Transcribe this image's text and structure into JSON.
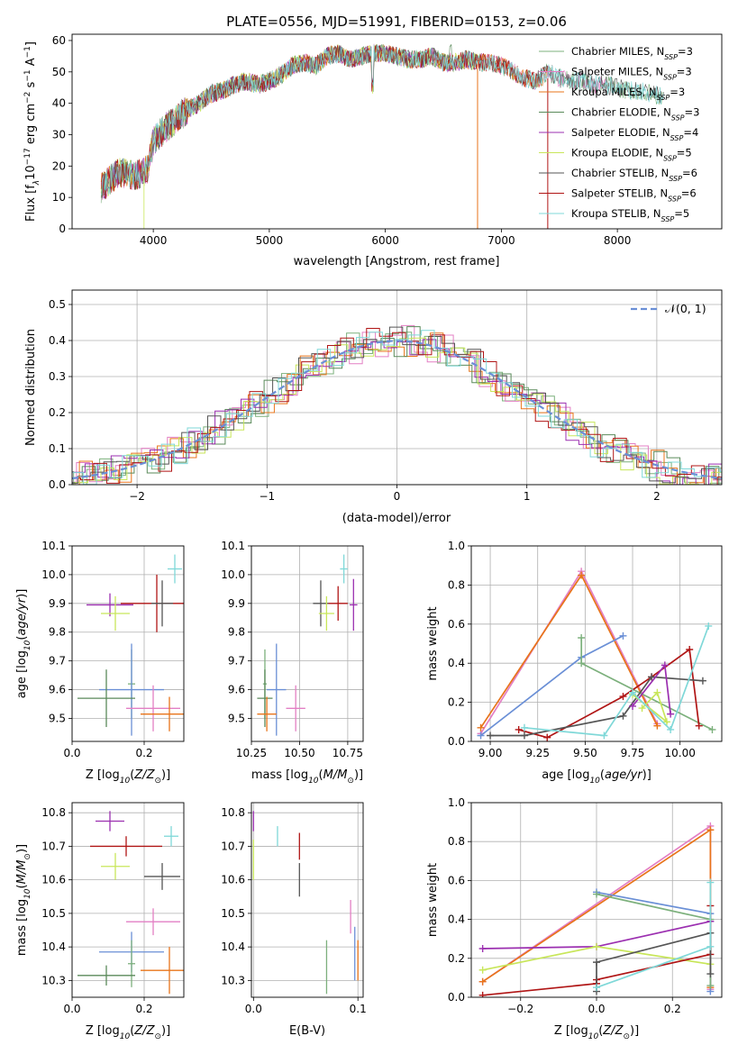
{
  "title": "PLATE=0556, MJD=51991, FIBERID=0153, z=0.06",
  "colors": {
    "chabrier_miles": "#7cb07c",
    "salpeter_miles": "#e37fc4",
    "kroupa_miles": "#e8741a",
    "chabrier_elodie": "#5a8a5a",
    "salpeter_elodie": "#9b2fb0",
    "kroupa_elodie": "#c8e65a",
    "chabrier_stelib": "#555555",
    "salpeter_stelib": "#b01515",
    "kroupa_stelib": "#7fd8d8",
    "axes_blue": "#6a8fd6"
  },
  "chart_data": [
    {
      "id": "spectrum",
      "type": "line",
      "xlabel": "wavelength [Angstrom, rest frame]",
      "ylabel": "Flux [f_λ10^-17 erg cm^-2 s^-1 A^-1]",
      "xlim": [
        3300,
        8900
      ],
      "ylim": [
        0,
        62
      ],
      "xticks": [
        "4000",
        "5000",
        "6000",
        "7000",
        "8000"
      ],
      "yticks": [
        "0",
        "10",
        "20",
        "30",
        "40",
        "50",
        "60"
      ],
      "grid": false,
      "legend_position": "top-right",
      "continuum": {
        "x": [
          3550,
          3700,
          3850,
          3950,
          4000,
          4100,
          4200,
          4300,
          4400,
          4500,
          4600,
          4700,
          4800,
          4900,
          5000,
          5100,
          5200,
          5300,
          5400,
          5500,
          5600,
          5700,
          5800,
          5900,
          6000,
          6100,
          6200,
          6300,
          6400,
          6500,
          6600,
          6700,
          6800,
          6900,
          7000,
          7100,
          7200,
          7300,
          7400,
          7500,
          7600,
          7700,
          7800,
          7900,
          8000,
          8100,
          8200,
          8300,
          8400
        ],
        "y": [
          13,
          18,
          17,
          19,
          28,
          32,
          35,
          38,
          40,
          43,
          44,
          46,
          47,
          46,
          47,
          49,
          52,
          53,
          52,
          55,
          56,
          54,
          55,
          56,
          56,
          55,
          54,
          54,
          55,
          53,
          53,
          54,
          53,
          53,
          52,
          50,
          48,
          47,
          50,
          48,
          47,
          47,
          46,
          46,
          45,
          44,
          44,
          43,
          42
        ]
      },
      "series": [
        {
          "name": "Chabrier MILES, N_SSP=3",
          "color_key": "chabrier_miles",
          "xmax": 8400
        },
        {
          "name": "Salpeter MILES, N_SSP=3",
          "color_key": "salpeter_miles",
          "xmax": 7900
        },
        {
          "name": "Kroupa MILES, N_SSP=3",
          "color_key": "kroupa_miles",
          "xmax": 7400
        },
        {
          "name": "Chabrier ELODIE, N_SSP=3",
          "color_key": "chabrier_elodie",
          "xmax": 6800
        },
        {
          "name": "Salpeter ELODIE, N_SSP=4",
          "color_key": "salpeter_elodie",
          "xmax": 6800
        },
        {
          "name": "Kroupa ELODIE, N_SSP=5",
          "color_key": "kroupa_elodie",
          "xmax": 6800
        },
        {
          "name": "Chabrier STELIB, N_SSP=6",
          "color_key": "chabrier_stelib",
          "xmax": 8400
        },
        {
          "name": "Salpeter STELIB, N_SSP=6",
          "color_key": "salpeter_stelib",
          "xmax": 7400
        },
        {
          "name": "Kroupa STELIB, N_SSP=5",
          "color_key": "kroupa_stelib",
          "xmax": 8400
        }
      ]
    },
    {
      "id": "residuals",
      "type": "line",
      "xlabel": "(data-model)/error",
      "ylabel": "Normed distribution",
      "xlim": [
        -2.5,
        2.5
      ],
      "ylim": [
        0,
        0.54
      ],
      "xticks": [
        "−2",
        "−1",
        "0",
        "1",
        "2"
      ],
      "yticks": [
        "0.0",
        "0.1",
        "0.2",
        "0.3",
        "0.4",
        "0.5"
      ],
      "grid": true,
      "legend": "𝒩(0, 1)",
      "legend_position": "top-right"
    },
    {
      "id": "z_age",
      "type": "scatter",
      "xlabel": "Z [log10(Z/Z⊙)]",
      "ylabel": "age [log10(age/yr)]",
      "xlim": [
        0,
        0.31
      ],
      "ylim": [
        9.42,
        10.1
      ],
      "xticks": [
        "0.0",
        "0.2"
      ],
      "yticks": [
        "9.5",
        "9.6",
        "9.7",
        "9.8",
        "9.9",
        "10.0",
        "10.1"
      ],
      "grid": true,
      "points": [
        {
          "c": "kroupa_stelib",
          "x": 0.285,
          "y": 10.02,
          "ex": 0.02,
          "ey": 0.05
        },
        {
          "c": "salpeter_elodie",
          "x": 0.105,
          "y": 9.895,
          "ex": 0.065,
          "ey": 0.04
        },
        {
          "c": "salpeter_stelib",
          "x": 0.235,
          "y": 9.9,
          "ex": 0.1,
          "ey": 0.1
        },
        {
          "c": "chabrier_stelib",
          "x": 0.25,
          "y": 9.9,
          "ex": 0.03,
          "ey": 0.08
        },
        {
          "c": "kroupa_elodie",
          "x": 0.12,
          "y": 9.865,
          "ex": 0.04,
          "ey": 0.06
        },
        {
          "c": "chabrier_miles",
          "x": 0.165,
          "y": 9.62,
          "ex": 0.01,
          "ey": 0.12
        },
        {
          "c": "axes_blue",
          "x": 0.165,
          "y": 9.6,
          "ex": 0.09,
          "ey": 0.16
        },
        {
          "c": "chabrier_elodie",
          "x": 0.095,
          "y": 9.57,
          "ex": 0.08,
          "ey": 0.1
        },
        {
          "c": "salpeter_miles",
          "x": 0.225,
          "y": 9.535,
          "ex": 0.075,
          "ey": 0.08
        },
        {
          "c": "kroupa_miles",
          "x": 0.27,
          "y": 9.515,
          "ex": 0.08,
          "ey": 0.06
        }
      ]
    },
    {
      "id": "mass_age",
      "type": "scatter",
      "xlabel": "mass [log10(M/M⊙)]",
      "ylabel": "",
      "xlim": [
        10.25,
        10.83
      ],
      "ylim": [
        9.42,
        10.1
      ],
      "xticks": [
        "10.25",
        "10.50",
        "10.75"
      ],
      "yticks": [
        "9.5",
        "9.6",
        "9.7",
        "9.8",
        "9.9",
        "10.0",
        "10.1"
      ],
      "grid": true,
      "points": [
        {
          "c": "kroupa_stelib",
          "x": 10.73,
          "y": 10.02,
          "ex": 0.02,
          "ey": 0.05
        },
        {
          "c": "salpeter_elodie",
          "x": 10.78,
          "y": 9.895,
          "ex": 0.02,
          "ey": 0.09
        },
        {
          "c": "salpeter_stelib",
          "x": 10.7,
          "y": 9.9,
          "ex": 0.05,
          "ey": 0.06
        },
        {
          "c": "chabrier_stelib",
          "x": 10.61,
          "y": 9.9,
          "ex": 0.04,
          "ey": 0.08
        },
        {
          "c": "kroupa_elodie",
          "x": 10.64,
          "y": 9.865,
          "ex": 0.04,
          "ey": 0.06
        },
        {
          "c": "chabrier_miles",
          "x": 10.32,
          "y": 9.62,
          "ex": 0.01,
          "ey": 0.12
        },
        {
          "c": "axes_blue",
          "x": 10.38,
          "y": 9.6,
          "ex": 0.05,
          "ey": 0.16
        },
        {
          "c": "chabrier_elodie",
          "x": 10.32,
          "y": 9.57,
          "ex": 0.04,
          "ey": 0.1
        },
        {
          "c": "salpeter_miles",
          "x": 10.48,
          "y": 9.535,
          "ex": 0.05,
          "ey": 0.08
        },
        {
          "c": "kroupa_miles",
          "x": 10.33,
          "y": 9.515,
          "ex": 0.05,
          "ey": 0.06
        }
      ]
    },
    {
      "id": "age_weight",
      "type": "line",
      "xlabel": "age [log10(age/yr)]",
      "ylabel": "mass weight",
      "xlim": [
        8.9,
        10.22
      ],
      "ylim": [
        0,
        1
      ],
      "xticks": [
        "9.00",
        "9.25",
        "9.50",
        "9.75",
        "10.00"
      ],
      "yticks": [
        "0.0",
        "0.2",
        "0.4",
        "0.6",
        "0.8",
        "1.0"
      ],
      "grid": true,
      "series": [
        {
          "c": "salpeter_miles",
          "x": [
            8.95,
            9.48,
            9.88
          ],
          "y": [
            0.04,
            0.87,
            0.09
          ]
        },
        {
          "c": "kroupa_miles",
          "x": [
            8.95,
            9.48,
            9.88
          ],
          "y": [
            0.07,
            0.85,
            0.08
          ]
        },
        {
          "c": "axes_blue",
          "x": [
            8.95,
            9.48,
            9.7
          ],
          "y": [
            0.03,
            0.43,
            0.54
          ]
        },
        {
          "c": "chabrier_miles",
          "x": [
            9.48,
            9.48,
            10.17
          ],
          "y": [
            0.53,
            0.4,
            0.06
          ]
        },
        {
          "c": "salpeter_stelib",
          "x": [
            9.15,
            9.3,
            9.7,
            9.85,
            10.05,
            10.1
          ],
          "y": [
            0.06,
            0.02,
            0.23,
            0.33,
            0.47,
            0.08
          ]
        },
        {
          "c": "chabrier_stelib",
          "x": [
            9.0,
            9.18,
            9.7,
            9.85,
            10.12
          ],
          "y": [
            0.03,
            0.03,
            0.13,
            0.33,
            0.31
          ]
        },
        {
          "c": "salpeter_elodie",
          "x": [
            9.75,
            9.92,
            9.95
          ],
          "y": [
            0.18,
            0.39,
            0.14
          ]
        },
        {
          "c": "kroupa_elodie",
          "x": [
            9.8,
            9.88,
            9.93,
            9.75
          ],
          "y": [
            0.17,
            0.25,
            0.1,
            0.24
          ]
        },
        {
          "c": "kroupa_stelib",
          "x": [
            9.18,
            9.6,
            9.75,
            9.95,
            10.15
          ],
          "y": [
            0.07,
            0.03,
            0.25,
            0.06,
            0.59
          ]
        }
      ]
    },
    {
      "id": "z_mass",
      "type": "scatter",
      "xlabel": "Z [log10(Z/Z⊙)]",
      "ylabel": "mass [log10(M/M⊙)]",
      "xlim": [
        0,
        0.31
      ],
      "ylim": [
        10.25,
        10.83
      ],
      "xticks": [
        "0.0",
        "0.2"
      ],
      "yticks": [
        "10.3",
        "10.4",
        "10.5",
        "10.6",
        "10.7",
        "10.8"
      ],
      "grid": true,
      "points": [
        {
          "c": "salpeter_elodie",
          "x": 0.105,
          "y": 10.775,
          "ex": 0.04,
          "ey": 0.03
        },
        {
          "c": "kroupa_stelib",
          "x": 0.275,
          "y": 10.73,
          "ex": 0.02,
          "ey": 0.03
        },
        {
          "c": "salpeter_stelib",
          "x": 0.15,
          "y": 10.7,
          "ex": 0.1,
          "ey": 0.03
        },
        {
          "c": "kroupa_elodie",
          "x": 0.12,
          "y": 10.64,
          "ex": 0.04,
          "ey": 0.04
        },
        {
          "c": "chabrier_stelib",
          "x": 0.25,
          "y": 10.61,
          "ex": 0.05,
          "ey": 0.04
        },
        {
          "c": "salpeter_miles",
          "x": 0.225,
          "y": 10.475,
          "ex": 0.075,
          "ey": 0.04
        },
        {
          "c": "axes_blue",
          "x": 0.165,
          "y": 10.385,
          "ex": 0.09,
          "ey": 0.06
        },
        {
          "c": "chabrier_miles",
          "x": 0.165,
          "y": 10.35,
          "ex": 0.01,
          "ey": 0.07
        },
        {
          "c": "kroupa_miles",
          "x": 0.27,
          "y": 10.33,
          "ex": 0.08,
          "ey": 0.07
        },
        {
          "c": "chabrier_elodie",
          "x": 0.095,
          "y": 10.315,
          "ex": 0.08,
          "ey": 0.03
        }
      ]
    },
    {
      "id": "ebv_mass",
      "type": "scatter",
      "xlabel": "E(B-V)",
      "ylabel": "",
      "xlim": [
        -0.002,
        0.105
      ],
      "ylim": [
        10.25,
        10.83
      ],
      "xticks": [
        "0.0",
        "0.1"
      ],
      "yticks": [
        "10.3",
        "10.4",
        "10.5",
        "10.6",
        "10.7",
        "10.8"
      ],
      "grid": true,
      "points": [
        {
          "c": "salpeter_elodie",
          "x": 0.0,
          "y": 10.775,
          "ex": 0,
          "ey": 0.03
        },
        {
          "c": "kroupa_elodie",
          "x": 0.0,
          "y": 10.66,
          "ex": 0,
          "ey": 0.06
        },
        {
          "c": "kroupa_stelib",
          "x": 0.023,
          "y": 10.73,
          "ex": 0,
          "ey": 0.03
        },
        {
          "c": "salpeter_stelib",
          "x": 0.044,
          "y": 10.7,
          "ex": 0,
          "ey": 0.04
        },
        {
          "c": "chabrier_stelib",
          "x": 0.044,
          "y": 10.6,
          "ex": 0,
          "ey": 0.05
        },
        {
          "c": "salpeter_miles",
          "x": 0.093,
          "y": 10.49,
          "ex": 0,
          "ey": 0.05
        },
        {
          "c": "axes_blue",
          "x": 0.097,
          "y": 10.38,
          "ex": 0,
          "ey": 0.08
        },
        {
          "c": "chabrier_miles",
          "x": 0.07,
          "y": 10.34,
          "ex": 0,
          "ey": 0.08
        },
        {
          "c": "kroupa_miles",
          "x": 0.1,
          "y": 10.36,
          "ex": 0,
          "ey": 0.06
        }
      ]
    },
    {
      "id": "z_weight",
      "type": "line",
      "xlabel": "Z [log10(Z/Z⊙)]",
      "ylabel": "mass weight",
      "xlim": [
        -0.33,
        0.33
      ],
      "ylim": [
        0,
        1
      ],
      "xticks": [
        "−0.2",
        "0.0",
        "0.2"
      ],
      "yticks": [
        "0.0",
        "0.2",
        "0.4",
        "0.6",
        "0.8",
        "1.0"
      ],
      "grid": true,
      "series": [
        {
          "c": "salpeter_miles",
          "x": [
            -0.3,
            0.3,
            0.3
          ],
          "y": [
            0.08,
            0.88,
            0.04
          ]
        },
        {
          "c": "kroupa_miles",
          "x": [
            -0.3,
            0.3,
            0.3
          ],
          "y": [
            0.08,
            0.86,
            0.05
          ]
        },
        {
          "c": "axes_blue",
          "x": [
            0.0,
            0.3,
            0.3
          ],
          "y": [
            0.54,
            0.43,
            0.03
          ]
        },
        {
          "c": "chabrier_miles",
          "x": [
            0.0,
            0.3,
            0.3
          ],
          "y": [
            0.53,
            0.4,
            0.06
          ]
        },
        {
          "c": "salpeter_elodie",
          "x": [
            -0.3,
            0.0,
            0.3
          ],
          "y": [
            0.25,
            0.26,
            0.39
          ]
        },
        {
          "c": "kroupa_elodie",
          "x": [
            -0.3,
            0.0,
            0.3
          ],
          "y": [
            0.14,
            0.26,
            0.17
          ]
        },
        {
          "c": "salpeter_stelib",
          "x": [
            -0.3,
            0.0,
            0.0,
            0.3,
            0.3
          ],
          "y": [
            0.01,
            0.07,
            0.09,
            0.22,
            0.47
          ]
        },
        {
          "c": "chabrier_stelib",
          "x": [
            0.0,
            0.0,
            0.3,
            0.3
          ],
          "y": [
            0.03,
            0.18,
            0.33,
            0.12
          ]
        },
        {
          "c": "kroupa_stelib",
          "x": [
            0.0,
            0.3,
            0.3
          ],
          "y": [
            0.05,
            0.26,
            0.59
          ]
        }
      ]
    }
  ]
}
